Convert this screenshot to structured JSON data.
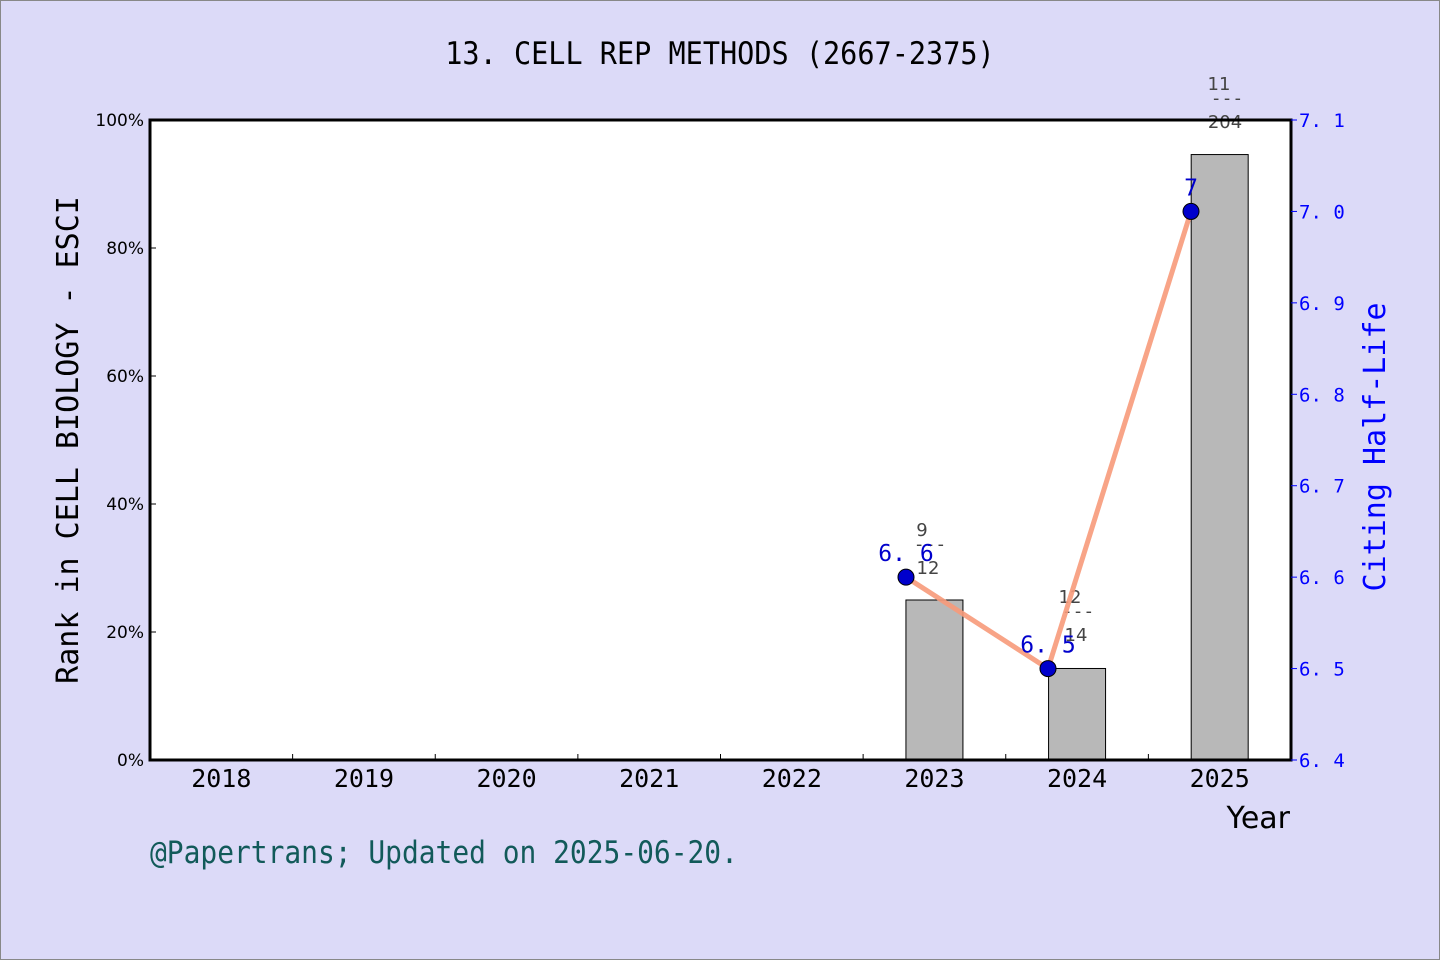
{
  "title": "13. CELL REP METHODS (2667-2375)",
  "footer": "@Papertrans; Updated on 2025-06-20.",
  "colors": {
    "background": "#dcdaf8",
    "bar": "#b8b8b8",
    "line": "#f79a7a",
    "marker": "#0000cc",
    "right_axis": "#0000ff"
  },
  "chart_data": {
    "type": "bar+line",
    "title": "13. CELL REP METHODS (2667-2375)",
    "xlabel": "Year",
    "ylabel": "Rank in CELL BIOLOGY - ESCI",
    "y2label": "Citing Half-Life",
    "categories": [
      "2018",
      "2019",
      "2020",
      "2021",
      "2022",
      "2023",
      "2024",
      "2025"
    ],
    "ylim": [
      0,
      100
    ],
    "y_ticks": [
      "0%",
      "20%",
      "40%",
      "60%",
      "80%",
      "100%"
    ],
    "y2lim": [
      6.4,
      7.1
    ],
    "y2_ticks": [
      "6.4",
      "6.5",
      "6.6",
      "6.7",
      "6.8",
      "6.9",
      "7.0",
      "7.1"
    ],
    "series": [
      {
        "name": "Rank percentile",
        "type": "bar",
        "values": [
          null,
          null,
          null,
          null,
          null,
          25.0,
          14.3,
          94.6
        ],
        "labels": [
          null,
          null,
          null,
          null,
          null,
          {
            "num": "9",
            "den": "12"
          },
          {
            "num": "12",
            "den": "14"
          },
          {
            "num": "11",
            "den": "204"
          }
        ]
      },
      {
        "name": "Citing Half-Life",
        "type": "line",
        "axis": "right",
        "values": [
          null,
          null,
          null,
          null,
          null,
          6.6,
          6.5,
          7.0
        ],
        "labels": [
          null,
          null,
          null,
          null,
          null,
          "6.6",
          "6.5",
          "7"
        ]
      }
    ],
    "grid": false,
    "legend": "none"
  }
}
